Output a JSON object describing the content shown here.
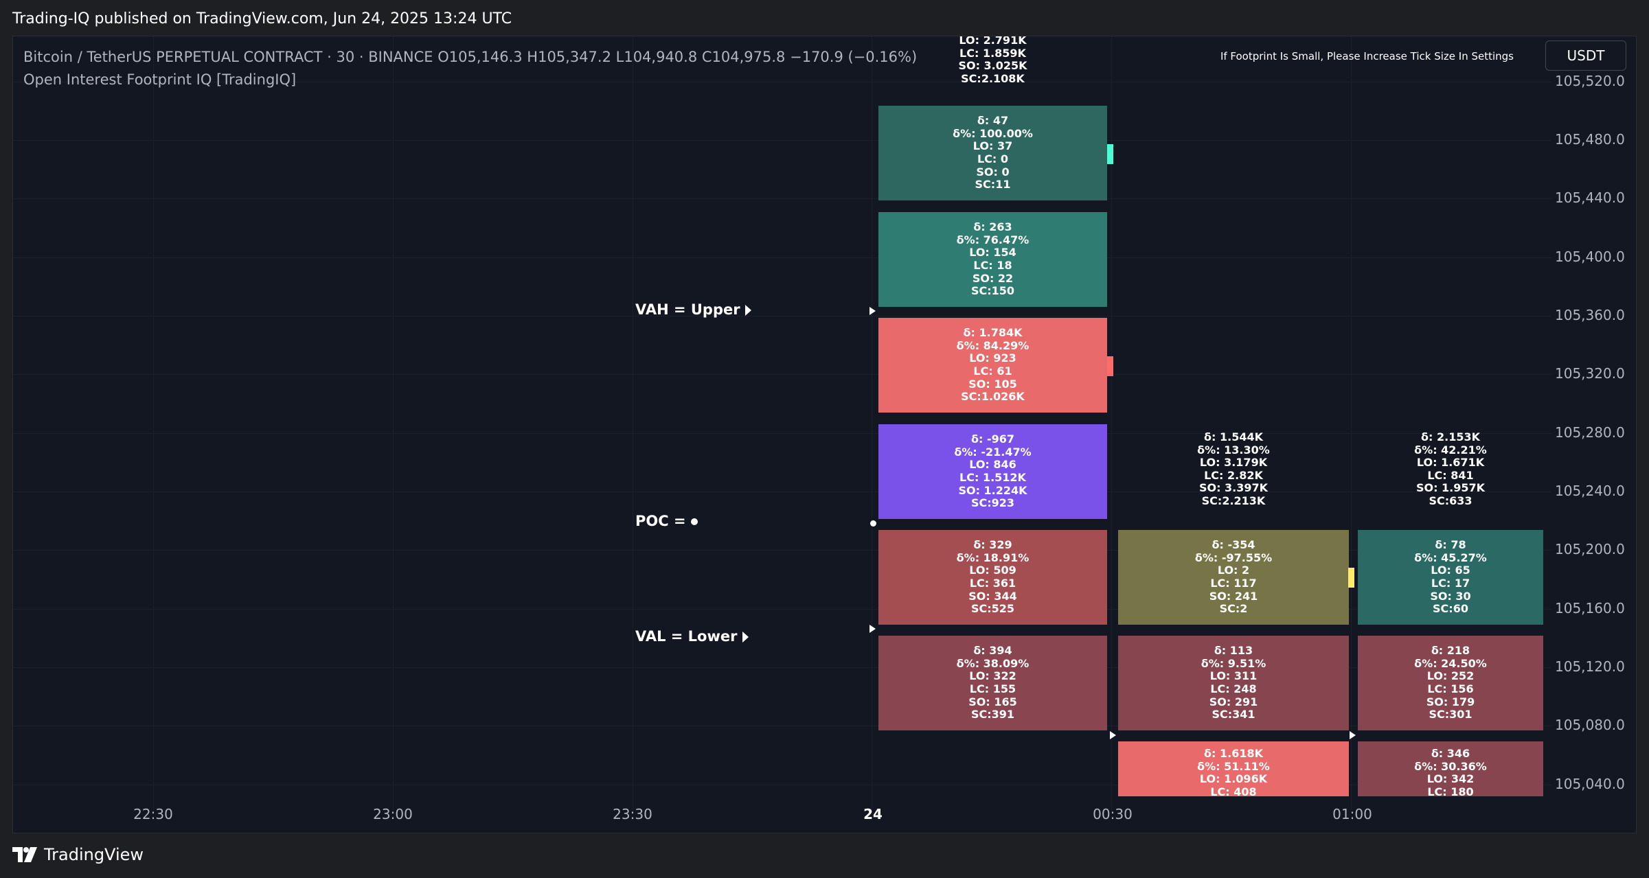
{
  "header": {
    "published": "Trading-IQ published on TradingView.com, Jun 24, 2025 13:24 UTC"
  },
  "legend": {
    "symbol_line": "Bitcoin / TetherUS PERPETUAL CONTRACT · 30 · BINANCE  O105,146.3  H105,347.2  L104,940.8  C104,975.8  −170.9 (−0.16%)",
    "indicator": "Open Interest Footprint IQ [TradingIQ]"
  },
  "notice": "If Footprint Is Small, Please Increase Tick Size In Settings",
  "currency": "USDT",
  "price_axis": [
    "105,520.0",
    "105,480.0",
    "105,440.0",
    "105,400.0",
    "105,360.0",
    "105,320.0",
    "105,280.0",
    "105,240.0",
    "105,200.0",
    "105,160.0",
    "105,120.0",
    "105,080.0",
    "105,040.0"
  ],
  "time_axis": [
    "22:30",
    "23:00",
    "23:30",
    "24",
    "00:30",
    "01:00"
  ],
  "levels": {
    "vah": "VAH = Upper",
    "poc": "POC =",
    "val": "VAL = Lower"
  },
  "colors": {
    "teal_dark": "#2e6660",
    "teal": "#2f7c72",
    "coral": "#e96a6a",
    "purple": "#7b52e9",
    "rust": "#a44e52",
    "olive": "#777447",
    "maroon": "#87464f",
    "maroon2": "#8a4650",
    "teal2": "#2b6a64",
    "marker_cyan": "#4affd7",
    "marker_red": "#ff6a6a",
    "marker_yellow": "#ffeb6b"
  },
  "footprint": {
    "col1_summary": [
      "LO: 2.791K",
      "LC: 1.859K",
      "SO: 3.025K",
      "SC:2.108K"
    ],
    "col1": [
      [
        "δ: 47",
        "δ%: 100.00%",
        "LO: 37",
        "LC: 0",
        "SO: 0",
        "SC:11"
      ],
      [
        "δ: 263",
        "δ%: 76.47%",
        "LO: 154",
        "LC: 18",
        "SO: 22",
        "SC:150"
      ],
      [
        "δ: 1.784K",
        "δ%: 84.29%",
        "LO: 923",
        "LC: 61",
        "SO: 105",
        "SC:1.026K"
      ],
      [
        "δ: -967",
        "δ%: -21.47%",
        "LO: 846",
        "LC: 1.512K",
        "SO: 1.224K",
        "SC:923"
      ],
      [
        "δ: 329",
        "δ%: 18.91%",
        "LO: 509",
        "LC: 361",
        "SO: 344",
        "SC:525"
      ],
      [
        "δ: 394",
        "δ%: 38.09%",
        "LO: 322",
        "LC: 155",
        "SO: 165",
        "SC:391"
      ]
    ],
    "col2_summary": [
      "δ: 1.544K",
      "δ%: 13.30%",
      "LO: 3.179K",
      "LC: 2.82K",
      "SO: 3.397K",
      "SC:2.213K"
    ],
    "col2": [
      [
        "δ: -354",
        "δ%: -97.55%",
        "LO: 2",
        "LC: 117",
        "SO: 241",
        "SC:2"
      ],
      [
        "δ: 113",
        "δ%: 9.51%",
        "LO: 311",
        "LC: 248",
        "SO: 291",
        "SC:341"
      ],
      [
        "δ: 1.618K",
        "δ%: 51.11%",
        "LO: 1.096K",
        "LC: 408"
      ]
    ],
    "col3_summary": [
      "δ: 2.153K",
      "δ%: 42.21%",
      "LO: 1.671K",
      "LC: 841",
      "SO: 1.957K",
      "SC:633"
    ],
    "col3": [
      [
        "δ: 78",
        "δ%: 45.27%",
        "LO: 65",
        "LC: 17",
        "SO: 30",
        "SC:60"
      ],
      [
        "δ: 218",
        "δ%: 24.50%",
        "LO: 252",
        "LC: 156",
        "SO: 179",
        "SC:301"
      ],
      [
        "δ: 346",
        "δ%: 30.36%",
        "LO: 342",
        "LC: 180"
      ]
    ]
  },
  "brand": "TradingView"
}
